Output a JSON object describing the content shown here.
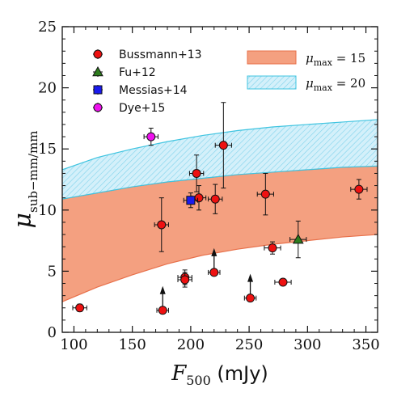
{
  "chart_data": {
    "type": "scatter",
    "xlabel_symbol": "F",
    "xlabel_sub": "500",
    "xlabel_unit": "(mJy)",
    "ylabel_symbol": "μ",
    "ylabel_sub": "sub−mm/mm",
    "xlim": [
      90,
      360
    ],
    "ylim": [
      0,
      25
    ],
    "xticks": [
      100,
      150,
      200,
      250,
      300,
      350
    ],
    "yticks": [
      0,
      5,
      10,
      15,
      20,
      25
    ],
    "bands": [
      {
        "label_main": "μ",
        "label_sub": "max",
        "label_eq": " = 15",
        "color": "#f4a080",
        "edge": "#e8704a",
        "lower": [
          [
            90,
            2.5
          ],
          [
            120,
            3.7
          ],
          [
            150,
            4.7
          ],
          [
            180,
            5.6
          ],
          [
            210,
            6.3
          ],
          [
            240,
            6.8
          ],
          [
            270,
            7.2
          ],
          [
            300,
            7.5
          ],
          [
            330,
            7.8
          ],
          [
            360,
            8.0
          ]
        ],
        "upper": [
          [
            90,
            10.9
          ],
          [
            120,
            11.4
          ],
          [
            150,
            11.9
          ],
          [
            180,
            12.3
          ],
          [
            210,
            12.6
          ],
          [
            240,
            12.9
          ],
          [
            270,
            13.1
          ],
          [
            300,
            13.3
          ],
          [
            330,
            13.5
          ],
          [
            360,
            13.6
          ]
        ]
      },
      {
        "label_main": "μ",
        "label_sub": "max",
        "label_eq": " = 20",
        "color": "#bfe7f5",
        "edge": "#3fc4e0",
        "lower": [
          [
            90,
            10.9
          ],
          [
            120,
            11.4
          ],
          [
            150,
            11.9
          ],
          [
            180,
            12.3
          ],
          [
            210,
            12.6
          ],
          [
            240,
            12.9
          ],
          [
            270,
            13.1
          ],
          [
            300,
            13.3
          ],
          [
            330,
            13.5
          ],
          [
            360,
            13.6
          ]
        ],
        "upper": [
          [
            90,
            13.3
          ],
          [
            120,
            14.3
          ],
          [
            150,
            15.0
          ],
          [
            180,
            15.6
          ],
          [
            210,
            16.1
          ],
          [
            240,
            16.5
          ],
          [
            270,
            16.8
          ],
          [
            300,
            17.0
          ],
          [
            330,
            17.2
          ],
          [
            360,
            17.4
          ]
        ]
      }
    ],
    "series": [
      {
        "name": "Bussmann+13",
        "marker": "circle",
        "color": "#ee1111",
        "points": [
          {
            "x": 105,
            "y": 2.0,
            "xerr": 6,
            "yerr": 0.3
          },
          {
            "x": 175,
            "y": 8.8,
            "xerr": 6,
            "yerr": 2.2
          },
          {
            "x": 195,
            "y": 4.5,
            "xerr": 6,
            "yerr": 0.6
          },
          {
            "x": 195,
            "y": 4.3,
            "xerr": 6,
            "yerr": 0.6
          },
          {
            "x": 205,
            "y": 13.0,
            "xerr": 6,
            "yerr": 1.5
          },
          {
            "x": 207,
            "y": 11.0,
            "xerr": 6,
            "yerr": 1.0
          },
          {
            "x": 221,
            "y": 10.9,
            "xerr": 6,
            "yerr": 1.2
          },
          {
            "x": 228,
            "y": 15.3,
            "xerr": 7,
            "yerr": 3.5
          },
          {
            "x": 264,
            "y": 11.3,
            "xerr": 7,
            "yerr": 1.7
          },
          {
            "x": 270,
            "y": 6.9,
            "xerr": 7,
            "yerr": 0.5
          },
          {
            "x": 279,
            "y": 4.1,
            "xerr": 7,
            "yerr": 0.2
          },
          {
            "x": 344,
            "y": 11.7,
            "xerr": 7,
            "yerr": 0.8
          }
        ]
      },
      {
        "name": "Fu+12",
        "marker": "triangle",
        "color": "#2e7d1e",
        "points": [
          {
            "x": 292,
            "y": 7.6,
            "xerr": 7,
            "yerr": 1.5
          }
        ]
      },
      {
        "name": "Messias+14",
        "marker": "square",
        "color": "#1a1aee",
        "points": [
          {
            "x": 200,
            "y": 10.8,
            "xerr": 6,
            "yerr": 0.6
          }
        ]
      },
      {
        "name": "Dye+15",
        "marker": "circle",
        "color": "#ee11ee",
        "points": [
          {
            "x": 166,
            "y": 16.0,
            "xerr": 6,
            "yerr": 0.7
          }
        ]
      }
    ],
    "lower_limits": [
      {
        "x": 176,
        "y": 1.8,
        "xerr": 5,
        "color": "#ee1111"
      },
      {
        "x": 220,
        "y": 4.9,
        "xerr": 5,
        "color": "#ee1111"
      },
      {
        "x": 251,
        "y": 2.8,
        "xerr": 5,
        "color": "#ee1111"
      }
    ],
    "legend": {
      "position": "top-left"
    },
    "grid": false
  }
}
